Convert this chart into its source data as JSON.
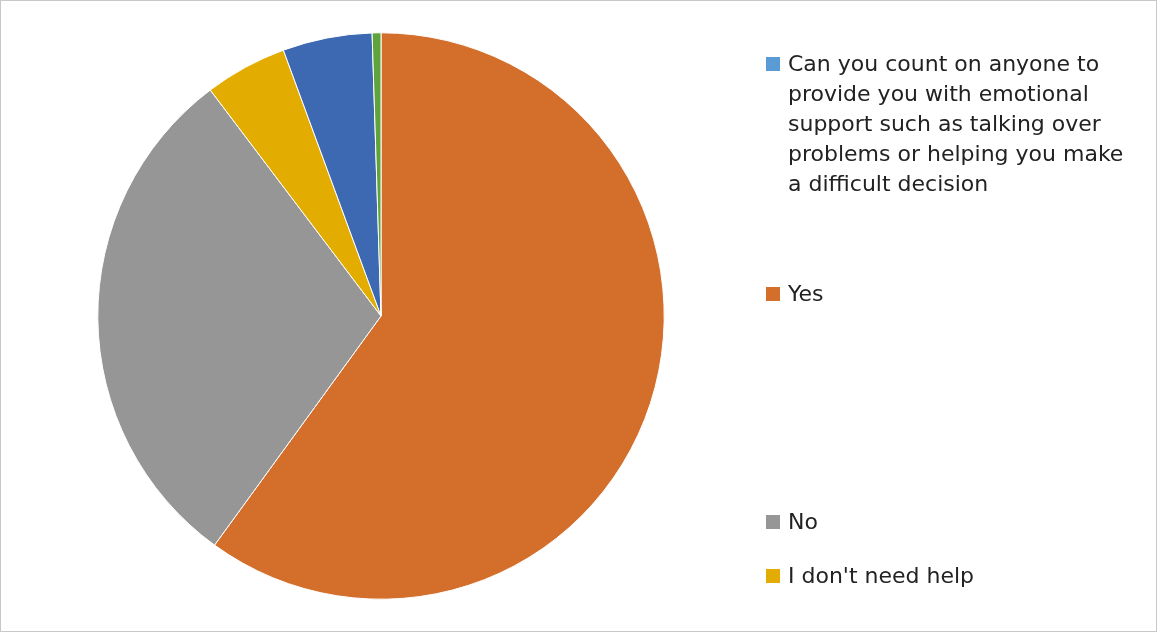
{
  "chart_data": {
    "type": "pie",
    "categories": [
      "Can you count on anyone to provide you with emotional support such as talking over problems or helping you make a difficult decision",
      "Yes",
      "No",
      "I don't need help",
      null,
      null
    ],
    "values": [
      0,
      60,
      29.7,
      4.7,
      5.1,
      0.5
    ],
    "colors": [
      "#5b9bd5",
      "#d46e2b",
      "#969696",
      "#e2ac00",
      "#3d68b2",
      "#5fa33c"
    ],
    "legend": "right"
  }
}
